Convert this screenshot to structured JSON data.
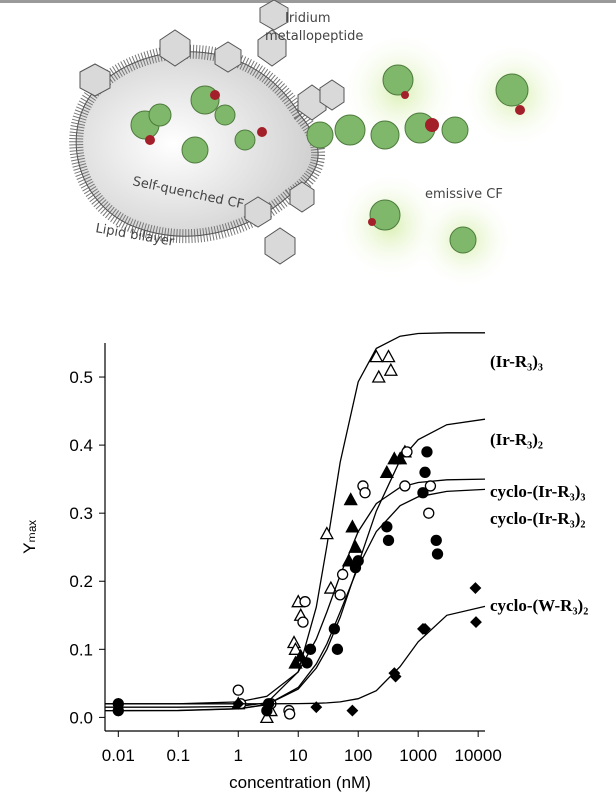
{
  "illustration": {
    "labels": {
      "iridium": [
        "Iridium",
        "metallopeptide"
      ],
      "self_quenched": "Self-quenched CF",
      "emissive": "emissive CF",
      "lipid": "Lipid bilayer"
    }
  },
  "chart_data": {
    "type": "scatter",
    "x_label": "concentration (nM)",
    "y_label": "Yₘₐₓ",
    "log_x": true,
    "xlim": [
      0.006,
      13000
    ],
    "xticks": [
      0.01,
      0.1,
      1,
      10,
      100,
      1000,
      10000
    ],
    "ylim": [
      -0.02,
      0.55
    ],
    "yticks": [
      {
        "value": 0,
        "label": "0.0"
      },
      0.1,
      0.2,
      0.3,
      0.4,
      0.5
    ],
    "fit_x": [
      0.006,
      0.01,
      0.1,
      1,
      3,
      10,
      20,
      30,
      50,
      100,
      200,
      500,
      1000,
      3000,
      13000
    ],
    "series": [
      {
        "name": "(Ir-R₃)₃",
        "color": "#000000",
        "marker": "triangle-open",
        "x": [
          3,
          3.5,
          8.5,
          9,
          10,
          11,
          30,
          35,
          200,
          220,
          320,
          350
        ],
        "values": [
          0.0,
          0.01,
          0.11,
          0.1,
          0.17,
          0.15,
          0.27,
          0.19,
          0.53,
          0.5,
          0.53,
          0.51
        ],
        "fit_values": [
          0.015,
          0.015,
          0.015,
          0.016,
          0.0215,
          0.067,
          0.162,
          0.252,
          0.375,
          0.493,
          0.542,
          0.56,
          0.564,
          0.565,
          0.565
        ]
      },
      {
        "name": "(Ir-R₃)₂",
        "color": "#000000",
        "marker": "triangle-filled",
        "x": [
          1,
          9,
          11,
          70,
          75,
          80,
          90,
          300,
          400,
          500,
          600
        ],
        "values": [
          0.02,
          0.08,
          0.09,
          0.23,
          0.32,
          0.28,
          0.25,
          0.36,
          0.38,
          0.38,
          0.39
        ],
        "fit_values": [
          0.01,
          0.01,
          0.0102,
          0.0127,
          0.0189,
          0.0416,
          0.0726,
          0.1,
          0.147,
          0.225,
          0.303,
          0.378,
          0.408,
          0.43,
          0.438
        ]
      },
      {
        "name": "cyclo-(Ir-R₃)₃",
        "color": "#000000",
        "marker": "circle-open",
        "x": [
          1,
          1.1,
          3.5,
          7,
          7.2,
          12,
          13,
          50,
          55,
          120,
          130,
          600,
          650,
          1500,
          1600
        ],
        "values": [
          0.04,
          0.02,
          0.02,
          0.01,
          0.005,
          0.14,
          0.17,
          0.18,
          0.21,
          0.34,
          0.33,
          0.34,
          0.39,
          0.3,
          0.34
        ],
        "fit_values": [
          0.02,
          0.02,
          0.02,
          0.0227,
          0.031,
          0.0667,
          0.115,
          0.155,
          0.209,
          0.273,
          0.314,
          0.338,
          0.345,
          0.349,
          0.35
        ]
      },
      {
        "name": "cyclo-(Ir-R₃)₂",
        "color": "#000000",
        "marker": "circle-filled",
        "x": [
          0.01,
          0.01,
          3,
          3.2,
          14,
          16,
          40,
          45,
          90,
          100,
          300,
          320,
          1200,
          1300,
          1400,
          2000,
          2100
        ],
        "values": [
          0.02,
          0.01,
          0.01,
          0.02,
          0.08,
          0.1,
          0.13,
          0.1,
          0.22,
          0.23,
          0.28,
          0.26,
          0.33,
          0.36,
          0.39,
          0.26,
          0.24
        ],
        "fit_values": [
          0.01,
          0.01,
          0.01,
          0.0124,
          0.0187,
          0.0439,
          0.0786,
          0.108,
          0.155,
          0.221,
          0.273,
          0.311,
          0.324,
          0.332,
          0.335
        ]
      },
      {
        "name": "cyclo-(W-R₃)₂",
        "color": "#000000",
        "marker": "diamond-filled",
        "x": [
          0.01,
          0.01,
          1,
          20,
          80,
          400,
          420,
          1200,
          1300,
          9000,
          9200
        ],
        "values": [
          0.02,
          0.01,
          0.02,
          0.015,
          0.01,
          0.065,
          0.06,
          0.13,
          0.13,
          0.19,
          0.14
        ],
        "fit_values": [
          0.02,
          0.02,
          0.02,
          0.02,
          0.02,
          0.0202,
          0.0207,
          0.0213,
          0.0227,
          0.0274,
          0.0392,
          0.0746,
          0.111,
          0.15,
          0.163
        ]
      }
    ]
  }
}
